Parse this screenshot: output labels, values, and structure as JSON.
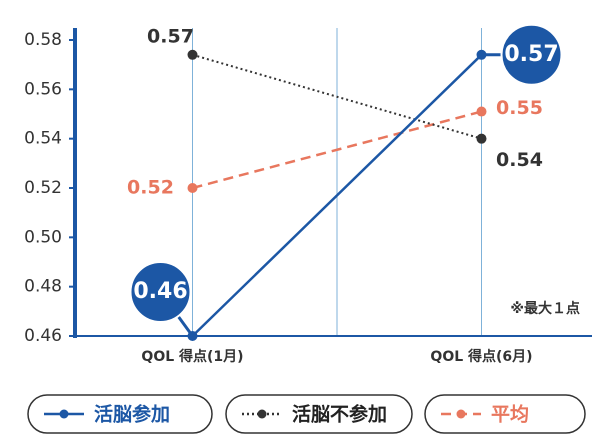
{
  "chart_data": {
    "type": "line",
    "categories": [
      "QOL 得点(1月)",
      "QOL 得点(6月)"
    ],
    "series": [
      {
        "name": "活脳参加",
        "color": "#1c57a5",
        "line_style": "solid",
        "values": [
          0.46,
          0.574
        ],
        "value_labels": [
          "0.46",
          "0.57"
        ]
      },
      {
        "name": "活脳不参加",
        "color": "#333333",
        "line_style": "dotted",
        "values": [
          0.574,
          0.54
        ],
        "value_labels": [
          "0.57",
          "0.54"
        ]
      },
      {
        "name": "平均",
        "color": "#e8775e",
        "line_style": "dashed",
        "values": [
          0.52,
          0.551
        ],
        "value_labels": [
          "0.52",
          "0.55"
        ]
      }
    ],
    "ylim": [
      0.46,
      0.58
    ],
    "yticks": [
      0.46,
      0.48,
      {
        "value": 0.5,
        "label": "0.50"
      },
      0.52,
      0.54,
      0.56,
      0.58
    ],
    "annotation": "※最大１点",
    "grid": true
  }
}
